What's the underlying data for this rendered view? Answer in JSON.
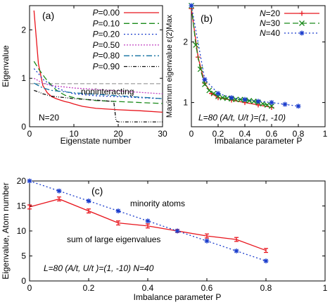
{
  "chart_data": [
    {
      "type": "line",
      "panel_label": "(a)",
      "xlabel": "Eigenstate number",
      "ylabel": "Eigenvalue",
      "xlim": [
        0,
        30
      ],
      "ylim": [
        0,
        2.5
      ],
      "xticks": [
        0,
        10,
        20,
        30
      ],
      "yticks": [
        0,
        1,
        2
      ],
      "legend_position": "top-right",
      "annotations": [
        "noninteracting",
        "N=20"
      ],
      "reference_line": {
        "label": "noninteracting",
        "y": 1.0
      },
      "series": [
        {
          "name": "P=0.00",
          "color": "#e8141c",
          "dash": "solid",
          "x": [
            1,
            2,
            3,
            4,
            5,
            6,
            7,
            8,
            9,
            10,
            12,
            15,
            20,
            25,
            30
          ],
          "y": [
            2.4,
            1.3,
            0.85,
            0.7,
            0.62,
            0.58,
            0.55,
            0.52,
            0.5,
            0.47,
            0.42,
            0.38,
            0.35,
            0.33,
            0.3
          ]
        },
        {
          "name": "P=0.10",
          "color": "#1a8a1a",
          "dash": "8,4",
          "x": [
            1,
            2,
            3,
            4,
            5,
            6,
            7,
            8,
            10,
            12,
            15,
            20,
            25,
            30
          ],
          "y": [
            1.35,
            1.2,
            1.07,
            0.95,
            0.85,
            0.76,
            0.7,
            0.65,
            0.6,
            0.57,
            0.54,
            0.52,
            0.5,
            0.48
          ]
        },
        {
          "name": "P=0.20",
          "color": "#1a3ccc",
          "dash": "2,3",
          "x": [
            1,
            2,
            3,
            5,
            8,
            10,
            15,
            20,
            25,
            30
          ],
          "y": [
            1.2,
            1.1,
            0.98,
            0.85,
            0.73,
            0.68,
            0.64,
            0.62,
            0.6,
            0.58
          ]
        },
        {
          "name": "P=0.50",
          "color": "#c040c0",
          "dash": "2,2",
          "x": [
            1,
            2,
            3,
            5,
            8,
            10,
            15,
            20,
            25,
            30
          ],
          "y": [
            1.0,
            0.95,
            0.9,
            0.85,
            0.82,
            0.8,
            0.77,
            0.74,
            0.71,
            0.68
          ]
        },
        {
          "name": "P=0.80",
          "color": "#1070a0",
          "dash": "8,3,2,3",
          "x": [
            1,
            2,
            3,
            5,
            8,
            10,
            15,
            20,
            25,
            30
          ],
          "y": [
            0.9,
            0.85,
            0.8,
            0.75,
            0.72,
            0.7,
            0.67,
            0.64,
            0.61,
            0.58
          ]
        },
        {
          "name": "P=0.90",
          "color": "#111111",
          "dash": "5,2,1,2,1,2",
          "x": [
            1,
            2,
            3,
            5,
            8,
            10,
            15,
            19,
            19.5,
            20,
            25,
            30
          ],
          "y": [
            0.75,
            0.72,
            0.68,
            0.63,
            0.6,
            0.58,
            0.55,
            0.52,
            0.12,
            0.1,
            0.1,
            0.1
          ]
        }
      ]
    },
    {
      "type": "line",
      "panel_label": "(b)",
      "xlabel": "Imbalance parameter P",
      "ylabel": "Maximum eigenvalue ε(2)Max",
      "xlim": [
        0,
        1
      ],
      "ylim": [
        0.6,
        2.6
      ],
      "xticks": [
        0,
        0.2,
        0.4,
        0.6,
        0.8,
        1
      ],
      "yticks": [
        1,
        2
      ],
      "legend_position": "top-right",
      "annotations": [
        "L=80 (A/t, U/t )=(1, -10)"
      ],
      "series": [
        {
          "name": "N=20",
          "color": "#e8141c",
          "dash": "solid",
          "marker": "plus",
          "x": [
            0,
            0.05,
            0.1,
            0.15,
            0.2,
            0.3,
            0.4,
            0.5,
            0.6
          ],
          "y": [
            2.55,
            1.75,
            1.32,
            1.15,
            1.08,
            1.04,
            1.0,
            0.96,
            0.92
          ]
        },
        {
          "name": "N=30",
          "color": "#1a8a1a",
          "dash": "8,4",
          "marker": "x",
          "x": [
            0,
            0.033,
            0.067,
            0.1,
            0.133,
            0.167,
            0.2,
            0.233,
            0.267,
            0.3,
            0.333,
            0.367,
            0.4,
            0.433,
            0.467,
            0.5,
            0.533,
            0.567,
            0.6
          ],
          "y": [
            2.6,
            1.95,
            1.55,
            1.3,
            1.2,
            1.15,
            1.1,
            1.08,
            1.07,
            1.06,
            1.05,
            1.05,
            1.04,
            1.03,
            1.02,
            1.0,
            0.98,
            0.96,
            0.94
          ]
        },
        {
          "name": "N=40",
          "color": "#1a3ccc",
          "dash": "2,3",
          "marker": "star",
          "x": [
            0,
            0.1,
            0.2,
            0.3,
            0.4,
            0.5,
            0.6,
            0.7,
            0.8
          ],
          "y": [
            2.6,
            1.38,
            1.15,
            1.08,
            1.05,
            1.02,
            1.0,
            0.97,
            0.94
          ]
        }
      ]
    },
    {
      "type": "line",
      "panel_label": "(c)",
      "xlabel": "Imbalance parameter P",
      "ylabel": "Eigenvalue, Atom number",
      "xlim": [
        0,
        1
      ],
      "ylim": [
        0,
        20
      ],
      "xticks": [
        0,
        0.2,
        0.4,
        0.6,
        0.8,
        1
      ],
      "yticks": [
        0,
        5,
        10,
        15,
        20
      ],
      "annotations": [
        "minority atoms",
        "sum of large eigenvalues",
        "L=80 (A/t, U/t )=(1, -10) N=40"
      ],
      "series": [
        {
          "name": "sum of large eigenvalues",
          "color": "#e8141c",
          "dash": "solid",
          "marker": "errorbar",
          "x": [
            0,
            0.1,
            0.2,
            0.3,
            0.4,
            0.5,
            0.6,
            0.7,
            0.8
          ],
          "y": [
            14.8,
            16.4,
            14.0,
            11.6,
            11.0,
            10.0,
            9.0,
            8.3,
            6.1
          ],
          "err": [
            0.4,
            0.4,
            0.4,
            0.4,
            0.4,
            0.3,
            0.4,
            0.4,
            0.4
          ]
        },
        {
          "name": "minority atoms",
          "color": "#1a3ccc",
          "dash": "2,3",
          "marker": "star",
          "x": [
            0,
            0.1,
            0.2,
            0.3,
            0.4,
            0.5,
            0.6,
            0.7,
            0.8
          ],
          "y": [
            20,
            18,
            16,
            14,
            12,
            10,
            8,
            6,
            4
          ]
        }
      ]
    }
  ]
}
